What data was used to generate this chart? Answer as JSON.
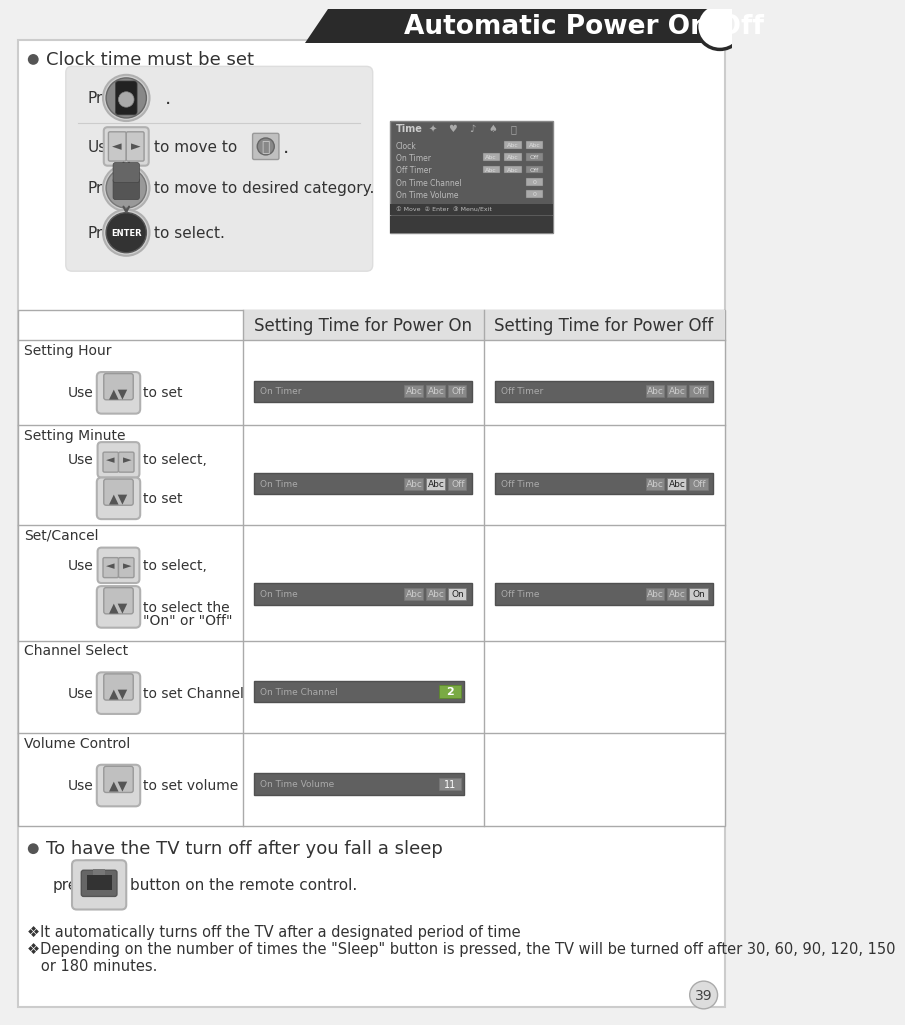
{
  "title": "Automatic Power On/Off",
  "bg_color": "#f0f0f0",
  "header_bg": "#2a2a2a",
  "header_text_color": "#ffffff",
  "page_number": "39",
  "bullet1_text": "Clock time must be set",
  "bullet2_text": "To have the TV turn off after you fall a sleep",
  "table_header_bg": "#e0e0e0",
  "table_header_col1": "Setting Time for Power On",
  "table_header_col2": "Setting Time for Power Off",
  "row1_label": "Setting Hour",
  "row2_label": "Setting Minute",
  "row3_label": "Set/Cancel",
  "row4_label": "Channel Select",
  "row5_label": "Volume Control",
  "footer_line1": "❖It automatically turns off the TV after a designated period of time",
  "footer_line2": "❖Depending on the number of times the \"Sleep\" button is pressed, the TV will be turned off after 30, 60, 90, 120, 150",
  "footer_line3": "   or 180 minutes.",
  "press_sleep": "button on the remote control.",
  "table_border": "#aaaaaa",
  "content_bg": "#ffffff"
}
